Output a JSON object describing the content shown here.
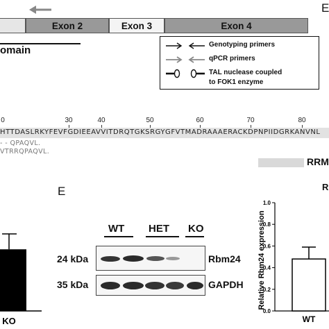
{
  "panel_top": {
    "letter_cut": "E",
    "exons": [
      {
        "label": ""
      },
      {
        "label": "Exon 2"
      },
      {
        "label": "Exon 3"
      },
      {
        "label": "Exon 4"
      }
    ],
    "domain_label_partial": "omain",
    "legend": [
      {
        "label": "Genotyping primers",
        "icon": "black-arrows-icon"
      },
      {
        "label": "qPCR primers",
        "icon": "grey-arrows-icon"
      },
      {
        "label": "TAL nuclease coupled",
        "icon": "tal-nuclease-icon"
      },
      {
        "label": "to FOK1 enzyme",
        "icon": ""
      }
    ]
  },
  "sequence": {
    "ticks": [
      "0",
      "30",
      "40",
      "50",
      "60",
      "70",
      "80"
    ],
    "wild_type": "HTTDASLRKYFEVFGDIEEAVVITDRQTGKSRGYGFVTMADRAAAERACKDPNPIIDGRKANVNL",
    "mutant_1": "- - QPAQVL.",
    "mutant_2": "VTRRQPAQVL.",
    "domain_label": "RRM"
  },
  "panel_d": {
    "category": "KO",
    "colors": {
      "bar": "#000000"
    }
  },
  "panel_e": {
    "letter": "E",
    "groups": [
      "WT",
      "HET",
      "KO"
    ],
    "rows": [
      {
        "kda": "24 kDa",
        "protein": "Rbm24"
      },
      {
        "kda": "35 kDa",
        "protein": "GAPDH"
      }
    ]
  },
  "panel_f": {
    "letter_cut": "R",
    "ylabel": "Relative Rbm24 expression",
    "yticks": [
      "0.0",
      "0.2",
      "0.4",
      "0.6",
      "0.8",
      "1.0"
    ],
    "category": "WT"
  },
  "chart_data": [
    {
      "type": "bar",
      "categories": [
        "KO"
      ],
      "values": [
        0.48
      ],
      "error": [
        0.12
      ],
      "xlabel": "",
      "ylabel": ""
    },
    {
      "type": "bar",
      "categories": [
        "WT"
      ],
      "values": [
        0.48
      ],
      "error": [
        0.11
      ],
      "ylabel": "Relative Rbm24 expression",
      "ylim": [
        0,
        1.0
      ],
      "grid": false
    }
  ]
}
